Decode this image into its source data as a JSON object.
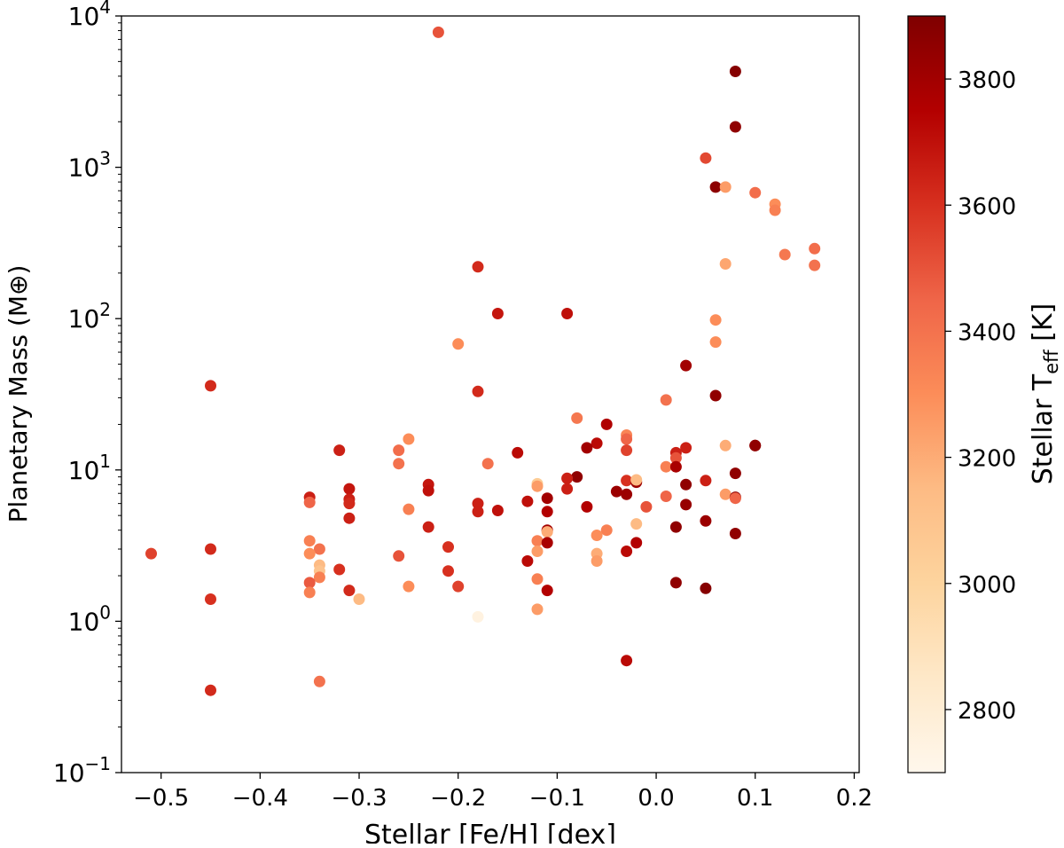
{
  "chart_data": {
    "type": "scatter",
    "title": "",
    "xlabel": "Stellar [Fe/H] [dex]",
    "ylabel": "Planetary Mass (M⊕)",
    "xlim": [
      -0.54,
      0.205
    ],
    "ylim": [
      0.1,
      10000
    ],
    "yscale": "log",
    "x_ticks": [
      -0.5,
      -0.4,
      -0.3,
      -0.2,
      -0.1,
      0.0,
      0.1,
      0.2
    ],
    "x_tick_labels": [
      "−0.5",
      "−0.4",
      "−0.3",
      "−0.2",
      "−0.1",
      "0.0",
      "0.1",
      "0.2"
    ],
    "y_ticks": [
      {
        "value": 0.1,
        "base": "10",
        "exp": "−1"
      },
      {
        "value": 1,
        "base": "10",
        "exp": "0"
      },
      {
        "value": 10,
        "base": "10",
        "exp": "1"
      },
      {
        "value": 100,
        "base": "10",
        "exp": "2"
      },
      {
        "value": 1000,
        "base": "10",
        "exp": "3"
      },
      {
        "value": 10000,
        "base": "10",
        "exp": "4"
      }
    ],
    "grid": false,
    "colorbar": {
      "label_main": "Stellar T",
      "label_sub": "eff",
      "label_unit": " [K]",
      "range": [
        2700,
        3900
      ],
      "ticks": [
        2800,
        3000,
        3200,
        3400,
        3600,
        3800
      ],
      "tick_labels": [
        "2800",
        "3000",
        "3200",
        "3400",
        "3600",
        "3800"
      ],
      "colormap": "OrRd",
      "stops": [
        "#fff7ec",
        "#fee8c8",
        "#fdd49e",
        "#fdbb84",
        "#fc8d59",
        "#ef6548",
        "#d7301f",
        "#b30000",
        "#7f0000"
      ]
    },
    "points": [
      {
        "x": -0.22,
        "y": 7800,
        "t": 3500
      },
      {
        "x": 0.08,
        "y": 4300,
        "t": 3880
      },
      {
        "x": 0.08,
        "y": 1850,
        "t": 3850
      },
      {
        "x": 0.05,
        "y": 1150,
        "t": 3530
      },
      {
        "x": 0.06,
        "y": 740,
        "t": 3860
      },
      {
        "x": 0.07,
        "y": 740,
        "t": 3250
      },
      {
        "x": 0.1,
        "y": 680,
        "t": 3420
      },
      {
        "x": 0.12,
        "y": 570,
        "t": 3300
      },
      {
        "x": 0.12,
        "y": 520,
        "t": 3350
      },
      {
        "x": 0.16,
        "y": 290,
        "t": 3420
      },
      {
        "x": 0.13,
        "y": 265,
        "t": 3380
      },
      {
        "x": 0.16,
        "y": 225,
        "t": 3400
      },
      {
        "x": 0.07,
        "y": 230,
        "t": 3220
      },
      {
        "x": -0.18,
        "y": 220,
        "t": 3620
      },
      {
        "x": -0.16,
        "y": 108,
        "t": 3680
      },
      {
        "x": -0.09,
        "y": 108,
        "t": 3700
      },
      {
        "x": 0.06,
        "y": 98,
        "t": 3300
      },
      {
        "x": 0.06,
        "y": 70,
        "t": 3300
      },
      {
        "x": -0.2,
        "y": 68,
        "t": 3300
      },
      {
        "x": 0.03,
        "y": 49,
        "t": 3800
      },
      {
        "x": -0.45,
        "y": 36,
        "t": 3620
      },
      {
        "x": -0.18,
        "y": 33,
        "t": 3620
      },
      {
        "x": 0.06,
        "y": 31,
        "t": 3850
      },
      {
        "x": 0.01,
        "y": 29,
        "t": 3400
      },
      {
        "x": -0.08,
        "y": 22,
        "t": 3380
      },
      {
        "x": -0.05,
        "y": 20,
        "t": 3760
      },
      {
        "x": -0.03,
        "y": 17,
        "t": 3330
      },
      {
        "x": -0.03,
        "y": 16,
        "t": 3450
      },
      {
        "x": -0.25,
        "y": 16,
        "t": 3300
      },
      {
        "x": -0.06,
        "y": 15,
        "t": 3720
      },
      {
        "x": 0.07,
        "y": 14.5,
        "t": 3200
      },
      {
        "x": 0.1,
        "y": 14.5,
        "t": 3850
      },
      {
        "x": -0.07,
        "y": 14,
        "t": 3800
      },
      {
        "x": 0.03,
        "y": 14,
        "t": 3650
      },
      {
        "x": -0.32,
        "y": 13.5,
        "t": 3650
      },
      {
        "x": -0.26,
        "y": 13.5,
        "t": 3420
      },
      {
        "x": -0.03,
        "y": 13.5,
        "t": 3550
      },
      {
        "x": -0.14,
        "y": 13,
        "t": 3720
      },
      {
        "x": 0.02,
        "y": 13,
        "t": 3650
      },
      {
        "x": 0.02,
        "y": 12,
        "t": 3500
      },
      {
        "x": -0.17,
        "y": 11,
        "t": 3400
      },
      {
        "x": -0.26,
        "y": 11,
        "t": 3400
      },
      {
        "x": 0.01,
        "y": 10.5,
        "t": 3350
      },
      {
        "x": 0.02,
        "y": 10.5,
        "t": 3780
      },
      {
        "x": 0.1,
        "y": 14.5,
        "t": 3850
      },
      {
        "x": 0.08,
        "y": 9.5,
        "t": 3850
      },
      {
        "x": -0.08,
        "y": 9,
        "t": 3850
      },
      {
        "x": -0.09,
        "y": 8.8,
        "t": 3650
      },
      {
        "x": -0.03,
        "y": 8.5,
        "t": 3600
      },
      {
        "x": -0.02,
        "y": 8.3,
        "t": 3820
      },
      {
        "x": -0.02,
        "y": 8.6,
        "t": 3150
      },
      {
        "x": 0.05,
        "y": 8.5,
        "t": 3650
      },
      {
        "x": -0.12,
        "y": 8.1,
        "t": 3050
      },
      {
        "x": -0.23,
        "y": 8,
        "t": 3680
      },
      {
        "x": -0.12,
        "y": 7.8,
        "t": 3250
      },
      {
        "x": 0.03,
        "y": 8,
        "t": 3850
      },
      {
        "x": -0.23,
        "y": 7.3,
        "t": 3700
      },
      {
        "x": -0.31,
        "y": 7.5,
        "t": 3680
      },
      {
        "x": -0.09,
        "y": 7.5,
        "t": 3650
      },
      {
        "x": -0.04,
        "y": 7.2,
        "t": 3820
      },
      {
        "x": -0.03,
        "y": 6.9,
        "t": 3820
      },
      {
        "x": 0.01,
        "y": 6.7,
        "t": 3450
      },
      {
        "x": 0.07,
        "y": 6.9,
        "t": 3250
      },
      {
        "x": 0.08,
        "y": 6.6,
        "t": 3850
      },
      {
        "x": 0.08,
        "y": 6.5,
        "t": 3450
      },
      {
        "x": -0.35,
        "y": 6.6,
        "t": 3650
      },
      {
        "x": -0.35,
        "y": 6.1,
        "t": 3450
      },
      {
        "x": -0.31,
        "y": 6.4,
        "t": 3650
      },
      {
        "x": -0.31,
        "y": 6.0,
        "t": 3620
      },
      {
        "x": -0.11,
        "y": 6.5,
        "t": 3800
      },
      {
        "x": -0.13,
        "y": 6.2,
        "t": 3700
      },
      {
        "x": -0.18,
        "y": 6.0,
        "t": 3650
      },
      {
        "x": -0.18,
        "y": 5.3,
        "t": 3650
      },
      {
        "x": -0.16,
        "y": 5.4,
        "t": 3700
      },
      {
        "x": -0.07,
        "y": 5.7,
        "t": 3750
      },
      {
        "x": 0.03,
        "y": 5.9,
        "t": 3830
      },
      {
        "x": -0.01,
        "y": 5.7,
        "t": 3500
      },
      {
        "x": -0.25,
        "y": 5.5,
        "t": 3350
      },
      {
        "x": -0.11,
        "y": 5.3,
        "t": 3750
      },
      {
        "x": -0.31,
        "y": 4.8,
        "t": 3650
      },
      {
        "x": 0.05,
        "y": 4.6,
        "t": 3820
      },
      {
        "x": -0.02,
        "y": 4.4,
        "t": 3150
      },
      {
        "x": -0.23,
        "y": 4.2,
        "t": 3650
      },
      {
        "x": 0.02,
        "y": 4.2,
        "t": 3850
      },
      {
        "x": -0.05,
        "y": 4.0,
        "t": 3350
      },
      {
        "x": -0.11,
        "y": 4.0,
        "t": 3800
      },
      {
        "x": -0.11,
        "y": 3.9,
        "t": 3200
      },
      {
        "x": 0.08,
        "y": 3.8,
        "t": 3850
      },
      {
        "x": -0.06,
        "y": 3.7,
        "t": 3300
      },
      {
        "x": -0.35,
        "y": 3.4,
        "t": 3350
      },
      {
        "x": -0.12,
        "y": 3.4,
        "t": 3350
      },
      {
        "x": -0.11,
        "y": 3.3,
        "t": 3780
      },
      {
        "x": -0.02,
        "y": 3.3,
        "t": 3750
      },
      {
        "x": -0.21,
        "y": 3.1,
        "t": 3600
      },
      {
        "x": -0.34,
        "y": 3.0,
        "t": 3400
      },
      {
        "x": -0.45,
        "y": 3.0,
        "t": 3620
      },
      {
        "x": -0.03,
        "y": 2.9,
        "t": 3720
      },
      {
        "x": -0.51,
        "y": 2.8,
        "t": 3550
      },
      {
        "x": -0.35,
        "y": 2.8,
        "t": 3300
      },
      {
        "x": -0.12,
        "y": 2.9,
        "t": 3250
      },
      {
        "x": -0.06,
        "y": 2.8,
        "t": 3200
      },
      {
        "x": -0.26,
        "y": 2.7,
        "t": 3500
      },
      {
        "x": -0.13,
        "y": 2.5,
        "t": 3720
      },
      {
        "x": -0.06,
        "y": 2.5,
        "t": 3250
      },
      {
        "x": -0.34,
        "y": 2.35,
        "t": 3150
      },
      {
        "x": -0.34,
        "y": 2.15,
        "t": 3100
      },
      {
        "x": -0.32,
        "y": 2.2,
        "t": 3600
      },
      {
        "x": -0.21,
        "y": 2.15,
        "t": 3600
      },
      {
        "x": -0.34,
        "y": 1.95,
        "t": 3350
      },
      {
        "x": -0.12,
        "y": 1.9,
        "t": 3350
      },
      {
        "x": -0.35,
        "y": 1.8,
        "t": 3480
      },
      {
        "x": -0.2,
        "y": 1.7,
        "t": 3550
      },
      {
        "x": -0.25,
        "y": 1.7,
        "t": 3300
      },
      {
        "x": 0.02,
        "y": 1.8,
        "t": 3850
      },
      {
        "x": 0.05,
        "y": 1.65,
        "t": 3880
      },
      {
        "x": -0.11,
        "y": 1.6,
        "t": 3750
      },
      {
        "x": -0.31,
        "y": 1.6,
        "t": 3620
      },
      {
        "x": -0.35,
        "y": 1.55,
        "t": 3350
      },
      {
        "x": -0.3,
        "y": 1.4,
        "t": 3150
      },
      {
        "x": -0.45,
        "y": 1.4,
        "t": 3600
      },
      {
        "x": -0.12,
        "y": 1.2,
        "t": 3250
      },
      {
        "x": -0.18,
        "y": 1.07,
        "t": 2750
      },
      {
        "x": -0.03,
        "y": 0.55,
        "t": 3720
      },
      {
        "x": -0.34,
        "y": 0.4,
        "t": 3400
      },
      {
        "x": -0.45,
        "y": 0.35,
        "t": 3620
      }
    ]
  }
}
